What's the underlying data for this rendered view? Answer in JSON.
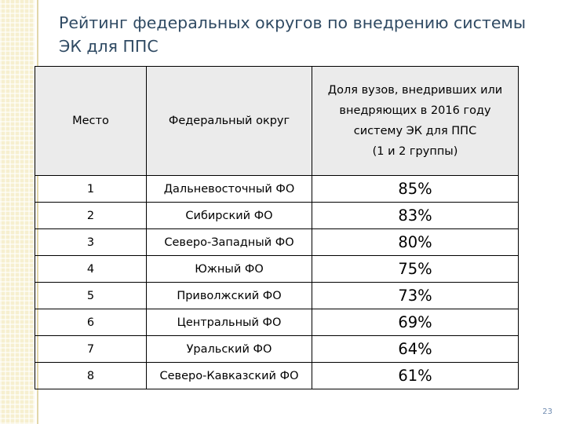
{
  "slide": {
    "title": "Рейтинг федеральных округов по внедрению системы ЭК для ППС",
    "page_number": "23"
  },
  "table": {
    "headers": {
      "rank": "Место",
      "district": "Федеральный округ",
      "share_lines": [
        "Доля вузов, внедривших или",
        "внедряющих в 2016 году",
        "систему ЭК для ППС",
        "(1 и 2 группы)"
      ]
    },
    "rows": [
      {
        "rank": "1",
        "district": "Дальневосточный ФО",
        "share": "85%"
      },
      {
        "rank": "2",
        "district": "Сибирский ФО",
        "share": "83%"
      },
      {
        "rank": "3",
        "district": "Северо-Западный ФО",
        "share": "80%"
      },
      {
        "rank": "4",
        "district": "Южный ФО",
        "share": "75%"
      },
      {
        "rank": "5",
        "district": "Приволжский ФО",
        "share": "73%"
      },
      {
        "rank": "6",
        "district": "Центральный ФО",
        "share": "69%"
      },
      {
        "rank": "7",
        "district": "Уральский ФО",
        "share": "64%"
      },
      {
        "rank": "8",
        "district": "Северо-Кавказский ФО",
        "share": "61%"
      }
    ]
  },
  "colors": {
    "title": "#2f4a63",
    "header_background": "#ebebeb",
    "side_band": "#f6efcf",
    "page_number": "#6f8bb0"
  }
}
